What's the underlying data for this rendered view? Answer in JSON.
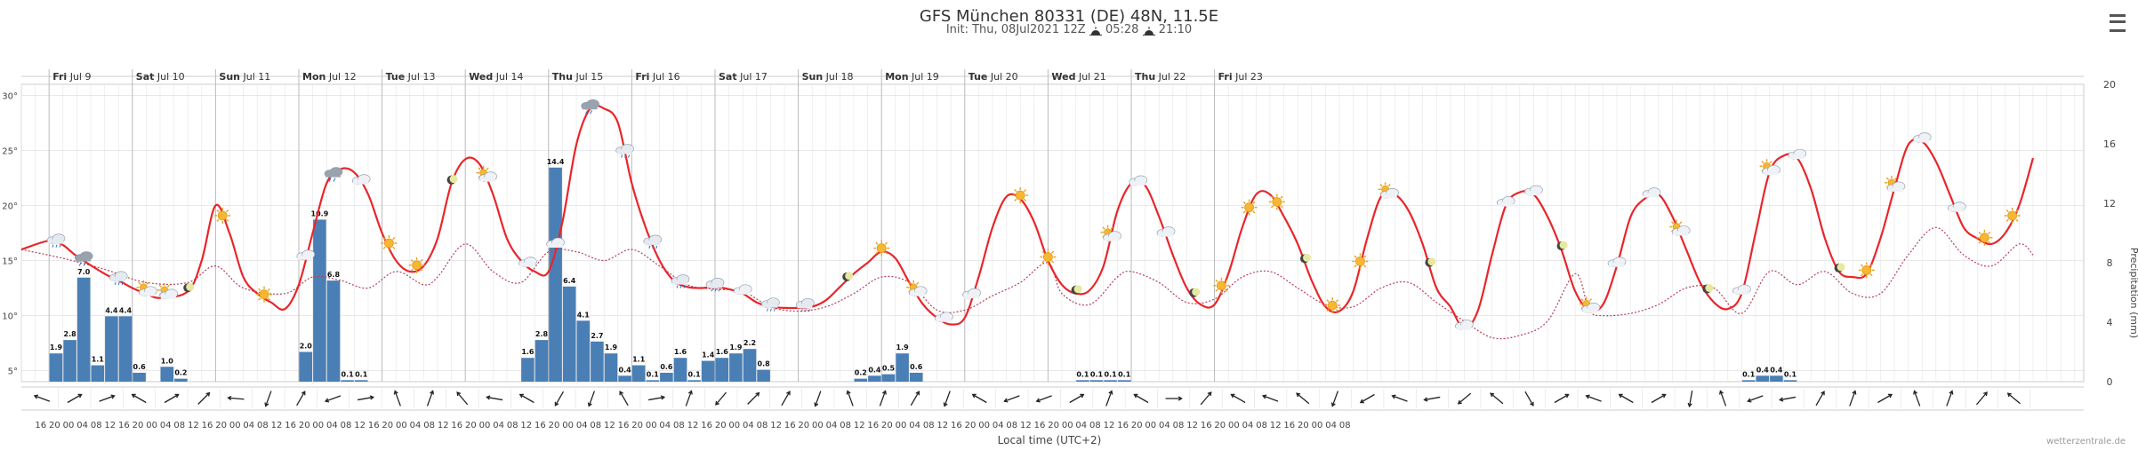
{
  "header": {
    "title": "GFS München 80331 (DE) 48N, 11.5E",
    "init_text": "Init: Thu, 08Jul2021 12Z",
    "sunrise": "05:28",
    "sunset": "21:10"
  },
  "footer": {
    "credit": "wetterzentrale.de"
  },
  "colors": {
    "temp": "#e8262b",
    "dew": "#b5405a",
    "precip": "#4a7fb5",
    "grid": "#e6e6e6"
  },
  "chart_data": {
    "type": "line+bar",
    "title": "GFS München 80331 (DE) 48N, 11.5E",
    "xlabel": "Local time (UTC+2)",
    "ylabel_left": "",
    "ylabel_right": "Precipitation (mm)",
    "ylim_left": [
      4,
      31
    ],
    "ylim_right": [
      0,
      20
    ],
    "y_left_ticks": [
      "30°",
      "25°",
      "20°",
      "15°",
      "10°",
      "5°"
    ],
    "y_right_ticks": [
      "20",
      "16",
      "12",
      "8",
      "4",
      "0"
    ],
    "day_labels": [
      {
        "dow": "Fri",
        "date": "Jul 9"
      },
      {
        "dow": "Sat",
        "date": "Jul 10"
      },
      {
        "dow": "Sun",
        "date": "Jul 11"
      },
      {
        "dow": "Mon",
        "date": "Jul 12"
      },
      {
        "dow": "Tue",
        "date": "Jul 13"
      },
      {
        "dow": "Wed",
        "date": "Jul 14"
      },
      {
        "dow": "Thu",
        "date": "Jul 15"
      },
      {
        "dow": "Fri",
        "date": "Jul 16"
      },
      {
        "dow": "Sat",
        "date": "Jul 17"
      },
      {
        "dow": "Sun",
        "date": "Jul 18"
      },
      {
        "dow": "Mon",
        "date": "Jul 19"
      },
      {
        "dow": "Tue",
        "date": "Jul 20"
      },
      {
        "dow": "Wed",
        "date": "Jul 21"
      },
      {
        "dow": "Thu",
        "date": "Jul 22"
      },
      {
        "dow": "Fri",
        "date": "Jul 23"
      }
    ],
    "hour_labels": [
      "16",
      "20",
      "00",
      "04",
      "08",
      "12",
      "16",
      "20",
      "00",
      "04",
      "08",
      "12",
      "16",
      "20",
      "00",
      "04",
      "08",
      "12",
      "16",
      "20",
      "00",
      "04",
      "08",
      "12",
      "16",
      "20",
      "00",
      "04",
      "08",
      "12",
      "16",
      "20",
      "00",
      "04",
      "08",
      "12",
      "16",
      "20",
      "00",
      "04",
      "08",
      "12",
      "16",
      "20",
      "00",
      "04",
      "08",
      "12",
      "16",
      "20",
      "00",
      "04",
      "08",
      "12",
      "16",
      "20",
      "00",
      "04",
      "08",
      "12",
      "16",
      "20",
      "00",
      "04",
      "08",
      "12",
      "16",
      "20",
      "00",
      "04",
      "08",
      "12",
      "16",
      "20",
      "00",
      "04",
      "08",
      "12",
      "16",
      "20",
      "00",
      "04",
      "08",
      "12",
      "16",
      "20",
      "00",
      "04",
      "08",
      "12",
      "16",
      "20",
      "00",
      "04",
      "08"
    ],
    "temperature": [
      [
        0,
        16
      ],
      [
        2,
        16.8
      ],
      [
        3,
        16.4
      ],
      [
        4,
        15.4
      ],
      [
        6,
        13.8
      ],
      [
        7,
        13.2
      ],
      [
        8,
        12.5
      ],
      [
        9,
        12
      ],
      [
        10,
        11.6
      ],
      [
        12,
        12.2
      ],
      [
        13,
        15
      ],
      [
        14,
        20
      ],
      [
        15,
        17.5
      ],
      [
        16,
        13.5
      ],
      [
        17,
        12
      ],
      [
        18,
        11.2
      ],
      [
        19,
        10.6
      ],
      [
        20,
        12.8
      ],
      [
        21,
        17.5
      ],
      [
        22,
        22
      ],
      [
        23,
        23.3
      ],
      [
        24,
        23
      ],
      [
        25,
        21
      ],
      [
        26,
        17.5
      ],
      [
        27,
        15
      ],
      [
        28,
        14
      ],
      [
        29,
        14.5
      ],
      [
        30,
        17
      ],
      [
        31,
        22
      ],
      [
        32,
        24.2
      ],
      [
        33,
        23.8
      ],
      [
        34,
        21
      ],
      [
        35,
        17
      ],
      [
        36,
        15
      ],
      [
        37,
        14
      ],
      [
        38,
        14
      ],
      [
        39,
        18.5
      ],
      [
        40,
        25.5
      ],
      [
        41,
        28.8
      ],
      [
        42,
        28.8
      ],
      [
        43,
        27.5
      ],
      [
        44,
        22
      ],
      [
        45,
        18
      ],
      [
        46,
        15
      ],
      [
        47,
        13.2
      ],
      [
        48,
        12.6
      ],
      [
        49,
        12.5
      ],
      [
        50,
        12.6
      ],
      [
        51,
        12.4
      ],
      [
        52,
        12
      ],
      [
        53,
        11.2
      ],
      [
        54,
        10.8
      ],
      [
        55,
        10.7
      ],
      [
        56,
        10.7
      ],
      [
        57,
        10.8
      ],
      [
        58,
        11.4
      ],
      [
        59,
        12.6
      ],
      [
        60,
        13.8
      ],
      [
        61,
        14.8
      ],
      [
        62,
        15.8
      ],
      [
        63,
        15.2
      ],
      [
        64,
        13
      ],
      [
        65,
        11
      ],
      [
        66,
        9.8
      ],
      [
        67,
        9.2
      ],
      [
        68,
        9.8
      ],
      [
        69,
        13.5
      ],
      [
        70,
        18
      ],
      [
        71,
        20.8
      ],
      [
        72,
        20.6
      ],
      [
        73,
        18.5
      ],
      [
        74,
        15
      ],
      [
        75,
        12.8
      ],
      [
        76,
        12
      ],
      [
        77,
        12.3
      ],
      [
        78,
        14.5
      ],
      [
        79,
        19.5
      ],
      [
        80,
        22
      ],
      [
        81,
        21.8
      ],
      [
        82,
        19
      ],
      [
        83,
        15.5
      ],
      [
        84,
        12.5
      ],
      [
        85,
        11
      ],
      [
        86,
        11
      ],
      [
        87,
        13.8
      ],
      [
        88,
        18
      ],
      [
        89,
        21
      ],
      [
        90,
        21
      ],
      [
        91,
        19
      ],
      [
        92,
        16.5
      ],
      [
        93,
        13.2
      ],
      [
        94,
        10.8
      ],
      [
        95,
        10.4
      ],
      [
        96,
        12.2
      ],
      [
        97,
        17
      ],
      [
        98,
        20.8
      ],
      [
        99,
        21
      ],
      [
        100,
        19.5
      ],
      [
        101,
        16.5
      ],
      [
        102,
        12.5
      ],
      [
        103,
        10.8
      ],
      [
        104,
        8.8
      ],
      [
        105,
        10.5
      ],
      [
        106,
        15.5
      ],
      [
        107,
        20
      ],
      [
        108,
        21.2
      ],
      [
        109,
        21
      ],
      [
        110,
        19
      ],
      [
        111,
        16
      ],
      [
        112,
        12.2
      ],
      [
        113,
        10.5
      ],
      [
        114,
        11
      ],
      [
        115,
        14.5
      ],
      [
        116,
        19
      ],
      [
        117,
        20.6
      ],
      [
        118,
        21
      ],
      [
        119,
        19
      ],
      [
        120,
        16
      ],
      [
        121,
        13
      ],
      [
        122,
        11.2
      ],
      [
        123,
        10.6
      ],
      [
        124,
        12
      ],
      [
        125,
        17.5
      ],
      [
        126,
        23
      ],
      [
        127,
        24.5
      ],
      [
        128,
        24.3
      ],
      [
        129,
        21.5
      ],
      [
        130,
        17
      ],
      [
        131,
        14
      ],
      [
        132,
        13.5
      ],
      [
        133,
        13.8
      ],
      [
        134,
        17
      ],
      [
        135,
        21.5
      ],
      [
        136,
        25.5
      ],
      [
        137,
        25.8
      ],
      [
        138,
        24
      ],
      [
        139,
        21
      ],
      [
        140,
        18
      ],
      [
        141,
        17
      ],
      [
        142,
        16.5
      ],
      [
        143,
        17.5
      ],
      [
        144,
        20
      ],
      [
        145,
        24.3
      ]
    ],
    "dewpoint": [
      [
        0,
        16
      ],
      [
        3,
        15.2
      ],
      [
        6,
        14.2
      ],
      [
        9,
        13
      ],
      [
        12,
        13
      ],
      [
        14,
        14.5
      ],
      [
        16,
        12.5
      ],
      [
        19,
        12
      ],
      [
        21,
        13.5
      ],
      [
        23,
        13.2
      ],
      [
        25,
        12.5
      ],
      [
        27,
        14
      ],
      [
        29,
        12.8
      ],
      [
        30,
        13.5
      ],
      [
        32,
        16.5
      ],
      [
        34,
        14
      ],
      [
        36,
        13
      ],
      [
        38,
        15.8
      ],
      [
        40,
        15.8
      ],
      [
        42,
        15
      ],
      [
        44,
        16
      ],
      [
        46,
        14.5
      ],
      [
        48,
        12.8
      ],
      [
        50,
        12.4
      ],
      [
        52,
        12.2
      ],
      [
        54,
        10.8
      ],
      [
        56,
        10.4
      ],
      [
        58,
        10.8
      ],
      [
        60,
        12
      ],
      [
        62,
        13.5
      ],
      [
        64,
        13
      ],
      [
        66,
        10.5
      ],
      [
        68,
        10.5
      ],
      [
        70,
        11.8
      ],
      [
        72,
        13
      ],
      [
        74,
        14.8
      ],
      [
        75,
        12
      ],
      [
        77,
        11
      ],
      [
        79,
        13.5
      ],
      [
        80,
        14
      ],
      [
        82,
        13
      ],
      [
        84,
        11.2
      ],
      [
        86,
        11.5
      ],
      [
        88,
        13.5
      ],
      [
        90,
        14
      ],
      [
        92,
        12.5
      ],
      [
        94,
        11
      ],
      [
        96,
        10.8
      ],
      [
        98,
        12.5
      ],
      [
        100,
        13
      ],
      [
        102,
        11.2
      ],
      [
        104,
        9.5
      ],
      [
        106,
        8
      ],
      [
        108,
        8.2
      ],
      [
        110,
        9.5
      ],
      [
        112,
        13.8
      ],
      [
        113,
        10.5
      ],
      [
        114,
        10
      ],
      [
        116,
        10.2
      ],
      [
        118,
        11
      ],
      [
        120,
        12.5
      ],
      [
        122,
        12.5
      ],
      [
        124,
        10.2
      ],
      [
        126,
        14
      ],
      [
        128,
        12.8
      ],
      [
        130,
        14
      ],
      [
        132,
        12
      ],
      [
        134,
        12
      ],
      [
        136,
        15.5
      ],
      [
        138,
        18
      ],
      [
        140,
        15.5
      ],
      [
        142,
        14.5
      ],
      [
        144,
        16.5
      ],
      [
        145,
        15.5
      ]
    ],
    "precipitation": [
      {
        "i": 2,
        "v": 1.9
      },
      {
        "i": 3,
        "v": 2.8
      },
      {
        "i": 4,
        "v": 7.0
      },
      {
        "i": 5,
        "v": 1.1
      },
      {
        "i": 6,
        "v": 4.4
      },
      {
        "i": 7,
        "v": 4.4
      },
      {
        "i": 8,
        "v": 0.6
      },
      {
        "i": 10,
        "v": 1.0
      },
      {
        "i": 11,
        "v": 0.2
      },
      {
        "i": 20,
        "v": 2.0
      },
      {
        "i": 21,
        "v": 10.9
      },
      {
        "i": 22,
        "v": 6.8
      },
      {
        "i": 23,
        "v": 0.1
      },
      {
        "i": 24,
        "v": 0.1
      },
      {
        "i": 36,
        "v": 1.6
      },
      {
        "i": 37,
        "v": 2.8
      },
      {
        "i": 38,
        "v": 14.4
      },
      {
        "i": 39,
        "v": 6.4
      },
      {
        "i": 40,
        "v": 4.1
      },
      {
        "i": 41,
        "v": 2.7
      },
      {
        "i": 42,
        "v": 1.9
      },
      {
        "i": 43,
        "v": 0.4
      },
      {
        "i": 44,
        "v": 1.1
      },
      {
        "i": 45,
        "v": 0.1
      },
      {
        "i": 46,
        "v": 0.6
      },
      {
        "i": 47,
        "v": 1.6
      },
      {
        "i": 48,
        "v": 0.1
      },
      {
        "i": 49,
        "v": 1.4
      },
      {
        "i": 50,
        "v": 1.6
      },
      {
        "i": 51,
        "v": 1.9
      },
      {
        "i": 52,
        "v": 2.2
      },
      {
        "i": 53,
        "v": 0.8
      },
      {
        "i": 60,
        "v": 0.2
      },
      {
        "i": 61,
        "v": 0.4
      },
      {
        "i": 62,
        "v": 0.5
      },
      {
        "i": 63,
        "v": 1.9
      },
      {
        "i": 64,
        "v": 0.6
      },
      {
        "i": 76,
        "v": 0.1
      },
      {
        "i": 77,
        "v": 0.1
      },
      {
        "i": 78,
        "v": 0.1
      },
      {
        "i": 79,
        "v": 0.1
      },
      {
        "i": 124,
        "v": 0.1
      },
      {
        "i": 125,
        "v": 0.4
      },
      {
        "i": 126,
        "v": 0.4
      },
      {
        "i": 127,
        "v": 0.1
      }
    ],
    "weather_icons": [
      {
        "i": 2.5,
        "type": "cloud-rain-icon"
      },
      {
        "i": 4.5,
        "type": "cloud-storm-icon"
      },
      {
        "i": 7,
        "type": "cloud-rain-icon"
      },
      {
        "i": 9,
        "type": "sun-cloud-icon"
      },
      {
        "i": 10.5,
        "type": "sun-cloud-icon"
      },
      {
        "i": 12,
        "type": "moon-icon"
      },
      {
        "i": 14.5,
        "type": "sun-icon"
      },
      {
        "i": 17.5,
        "type": "sun-icon"
      },
      {
        "i": 20.5,
        "type": "cloud-icon"
      },
      {
        "i": 22.5,
        "type": "cloud-storm-icon"
      },
      {
        "i": 24.5,
        "type": "cloud-icon"
      },
      {
        "i": 26.5,
        "type": "sun-icon"
      },
      {
        "i": 28.5,
        "type": "sun-icon"
      },
      {
        "i": 31,
        "type": "moon-icon"
      },
      {
        "i": 33.5,
        "type": "sun-cloud-icon"
      },
      {
        "i": 36.5,
        "type": "cloud-icon"
      },
      {
        "i": 38.5,
        "type": "cloud-icon"
      },
      {
        "i": 41,
        "type": "cloud-storm-icon"
      },
      {
        "i": 43.5,
        "type": "cloud-rain-icon"
      },
      {
        "i": 45.5,
        "type": "cloud-rain-icon"
      },
      {
        "i": 47.5,
        "type": "cloud-rain-icon"
      },
      {
        "i": 50,
        "type": "cloud-rain-icon"
      },
      {
        "i": 52,
        "type": "cloud-icon"
      },
      {
        "i": 54,
        "type": "cloud-rain-icon"
      },
      {
        "i": 56.5,
        "type": "cloud-rain-icon"
      },
      {
        "i": 59.5,
        "type": "moon-icon"
      },
      {
        "i": 62,
        "type": "sun-icon"
      },
      {
        "i": 64.5,
        "type": "sun-cloud-icon"
      },
      {
        "i": 66.5,
        "type": "cloud-icon"
      },
      {
        "i": 68.5,
        "type": "cloud-icon"
      },
      {
        "i": 72,
        "type": "sun-icon"
      },
      {
        "i": 74,
        "type": "sun-icon"
      },
      {
        "i": 76,
        "type": "moon-icon"
      },
      {
        "i": 78.5,
        "type": "sun-cloud-icon"
      },
      {
        "i": 80.5,
        "type": "cloud-icon"
      },
      {
        "i": 82.5,
        "type": "cloud-icon"
      },
      {
        "i": 84.5,
        "type": "moon-icon"
      },
      {
        "i": 86.5,
        "type": "sun-icon"
      },
      {
        "i": 88.5,
        "type": "sun-icon"
      },
      {
        "i": 90.5,
        "type": "sun-icon"
      },
      {
        "i": 92.5,
        "type": "moon-icon"
      },
      {
        "i": 94.5,
        "type": "sun-icon"
      },
      {
        "i": 96.5,
        "type": "sun-icon"
      },
      {
        "i": 98.5,
        "type": "sun-cloud-icon"
      },
      {
        "i": 101.5,
        "type": "moon-icon"
      },
      {
        "i": 104,
        "type": "cloud-icon"
      },
      {
        "i": 107,
        "type": "cloud-icon"
      },
      {
        "i": 109,
        "type": "cloud-icon"
      },
      {
        "i": 111,
        "type": "moon-icon"
      },
      {
        "i": 113,
        "type": "sun-cloud-icon"
      },
      {
        "i": 115,
        "type": "cloud-icon"
      },
      {
        "i": 117.5,
        "type": "cloud-icon"
      },
      {
        "i": 119.5,
        "type": "sun-cloud-icon"
      },
      {
        "i": 121.5,
        "type": "moon-icon"
      },
      {
        "i": 124,
        "type": "cloud-icon"
      },
      {
        "i": 126,
        "type": "sun-cloud-icon"
      },
      {
        "i": 128,
        "type": "cloud-icon"
      },
      {
        "i": 131,
        "type": "moon-icon"
      },
      {
        "i": 133,
        "type": "sun-icon"
      },
      {
        "i": 135,
        "type": "sun-cloud-icon"
      },
      {
        "i": 137,
        "type": "cloud-icon"
      },
      {
        "i": 139.5,
        "type": "cloud-icon"
      },
      {
        "i": 141.5,
        "type": "sun-icon"
      },
      {
        "i": 143.5,
        "type": "sun-icon"
      }
    ],
    "wind_dirs": [
      290,
      60,
      70,
      300,
      60,
      45,
      275,
      200,
      30,
      250,
      80,
      340,
      20,
      320,
      280,
      300,
      210,
      200,
      330,
      80,
      20,
      220,
      45,
      30,
      200,
      340,
      20,
      30,
      200,
      300,
      250,
      250,
      60,
      20,
      300,
      90,
      40,
      300,
      290,
      310,
      200,
      240,
      290,
      260,
      230,
      310,
      150,
      60,
      290,
      300,
      60,
      190,
      340,
      250,
      260,
      30,
      20,
      60,
      340,
      20,
      40,
      310
    ]
  }
}
